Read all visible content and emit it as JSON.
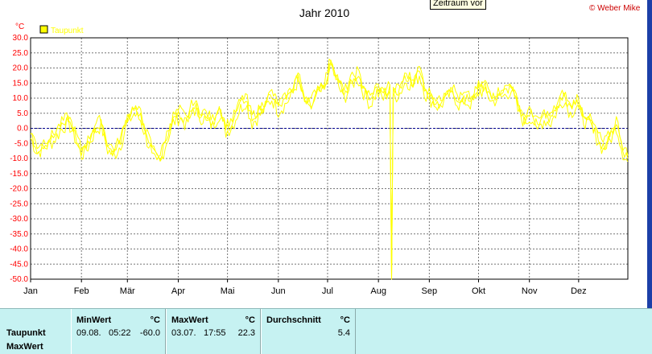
{
  "title": "Jahr 2010",
  "copyright": "© Weber Mike",
  "tooltip": "Zeitraum vor",
  "y_unit": "°C",
  "legend_label": "Taupunkt",
  "colors": {
    "series": "#ffff00",
    "grid": "#777777",
    "zero_line": "#00008b",
    "axis_text": "#ff0000",
    "title": "#000000",
    "stats_bg": "#c6f2f2"
  },
  "chart_data": {
    "type": "line",
    "title": "Jahr 2010",
    "ylabel": "°C",
    "ylim": [
      -50,
      30
    ],
    "yticks": [
      "30.0",
      "25.0",
      "20.0",
      "15.0",
      "10.0",
      "5.0",
      "0.0",
      "-5.0",
      "-10.0",
      "-15.0",
      "-20.0",
      "-25.0",
      "-30.0",
      "-35.0",
      "-40.0",
      "-45.0",
      "-50.0"
    ],
    "months": [
      "Jan",
      "Feb",
      "Mär",
      "Apr",
      "Mai",
      "Jun",
      "Jul",
      "Aug",
      "Sep",
      "Okt",
      "Nov",
      "Dez"
    ],
    "grid": true,
    "legend": "top-left",
    "series": [
      {
        "name": "Taupunkt",
        "color": "#ffff00",
        "anchors_doy_value": [
          [
            1,
            -2
          ],
          [
            5,
            -7
          ],
          [
            10,
            -5
          ],
          [
            15,
            -3
          ],
          [
            20,
            1
          ],
          [
            24,
            3
          ],
          [
            28,
            -2
          ],
          [
            32,
            -8
          ],
          [
            36,
            -5
          ],
          [
            40,
            0
          ],
          [
            44,
            2
          ],
          [
            48,
            -6
          ],
          [
            52,
            -8
          ],
          [
            56,
            -4
          ],
          [
            60,
            3
          ],
          [
            64,
            6
          ],
          [
            68,
            4
          ],
          [
            72,
            -3
          ],
          [
            76,
            -8
          ],
          [
            80,
            -10
          ],
          [
            84,
            -3
          ],
          [
            88,
            3
          ],
          [
            92,
            5
          ],
          [
            96,
            2
          ],
          [
            100,
            8
          ],
          [
            104,
            5
          ],
          [
            108,
            4
          ],
          [
            112,
            2
          ],
          [
            116,
            6
          ],
          [
            120,
            0
          ],
          [
            124,
            2
          ],
          [
            128,
            7
          ],
          [
            132,
            10
          ],
          [
            136,
            3
          ],
          [
            140,
            5
          ],
          [
            144,
            8
          ],
          [
            148,
            11
          ],
          [
            152,
            7
          ],
          [
            156,
            9
          ],
          [
            160,
            12
          ],
          [
            164,
            17
          ],
          [
            168,
            10
          ],
          [
            172,
            8
          ],
          [
            176,
            13
          ],
          [
            180,
            14
          ],
          [
            184,
            22.3
          ],
          [
            188,
            16
          ],
          [
            192,
            11
          ],
          [
            196,
            15
          ],
          [
            200,
            18
          ],
          [
            204,
            13
          ],
          [
            208,
            9
          ],
          [
            212,
            13
          ],
          [
            216,
            11
          ],
          [
            220,
            14
          ],
          [
            221,
            -60
          ],
          [
            222,
            11
          ],
          [
            226,
            13
          ],
          [
            230,
            17
          ],
          [
            234,
            15
          ],
          [
            238,
            19
          ],
          [
            242,
            12
          ],
          [
            246,
            10
          ],
          [
            250,
            8
          ],
          [
            254,
            11
          ],
          [
            258,
            13
          ],
          [
            262,
            9
          ],
          [
            266,
            10
          ],
          [
            270,
            9
          ],
          [
            274,
            13
          ],
          [
            278,
            14
          ],
          [
            282,
            10
          ],
          [
            286,
            11
          ],
          [
            290,
            12
          ],
          [
            294,
            14
          ],
          [
            298,
            7
          ],
          [
            302,
            3
          ],
          [
            306,
            5
          ],
          [
            310,
            1
          ],
          [
            314,
            4
          ],
          [
            318,
            3
          ],
          [
            322,
            7
          ],
          [
            326,
            11
          ],
          [
            330,
            6
          ],
          [
            334,
            9
          ],
          [
            338,
            4
          ],
          [
            342,
            2
          ],
          [
            346,
            -2
          ],
          [
            350,
            -6
          ],
          [
            354,
            -3
          ],
          [
            358,
            2
          ],
          [
            362,
            -7
          ],
          [
            365,
            -10
          ]
        ]
      }
    ]
  },
  "stats": {
    "row_labels": [
      "Taupunkt",
      "MaxWert"
    ],
    "columns": [
      {
        "header": "MinWert",
        "unit": "°C",
        "date": "09.08.",
        "time": "05:22",
        "value": "-60.0"
      },
      {
        "header": "MaxWert",
        "unit": "°C",
        "date": "03.07.",
        "time": "17:55",
        "value": "22.3"
      },
      {
        "header": "Durchschnitt",
        "unit": "°C",
        "value": "5.4"
      }
    ]
  }
}
